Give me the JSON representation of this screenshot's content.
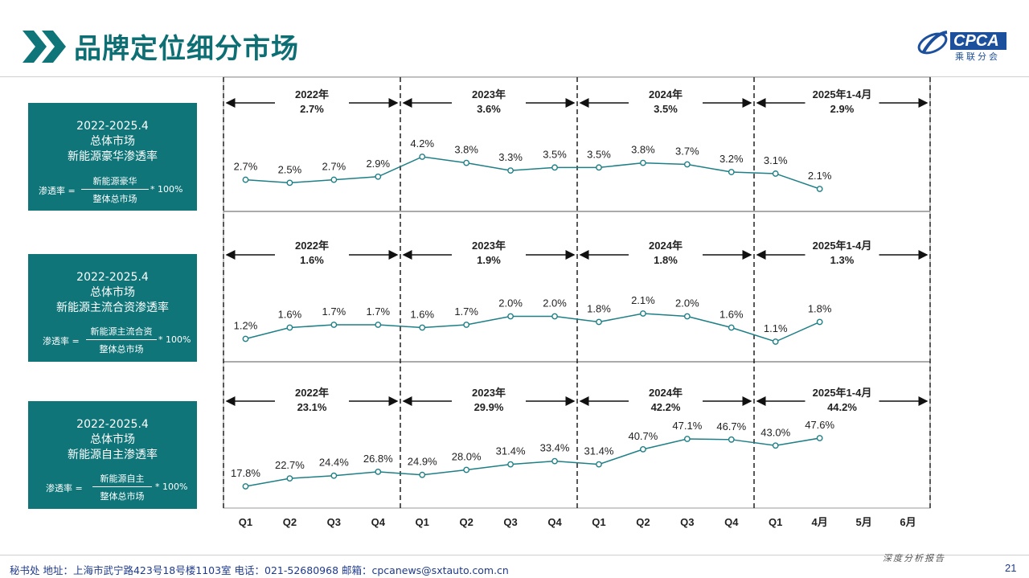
{
  "page": {
    "title": "品牌定位细分市场",
    "logo_text": "CPCA",
    "logo_sub": "乘联分会",
    "report_tag": "深度分析报告",
    "page_number": "21",
    "footer": "秘书处   地址：上海市武宁路423号18号楼1103室  电话：021-52680968   邮箱：cpcanews@sxtauto.com.cn"
  },
  "colors": {
    "brand_teal": "#0f7579",
    "line": "#1e7f86",
    "title": "#0d6f73",
    "logo_blue": "#1c4f9c"
  },
  "panels": [
    {
      "box_lines": [
        "2022-2025.4",
        "总体市场",
        "新能源豪华渗透率"
      ],
      "formula": {
        "label": "渗透率 =",
        "numerator": "新能源豪华",
        "denominator": "整体总市场",
        "multiplier": "* 100%"
      }
    },
    {
      "box_lines": [
        "2022-2025.4",
        "总体市场",
        "新能源主流合资渗透率"
      ],
      "formula": {
        "label": "渗透率 =",
        "numerator": "新能源主流合资",
        "denominator": "整体总市场",
        "multiplier": "* 100%"
      }
    },
    {
      "box_lines": [
        "2022-2025.4",
        "总体市场",
        "新能源自主渗透率"
      ],
      "formula": {
        "label": "渗透率 =",
        "numerator": "新能源自主",
        "denominator": "整体总市场",
        "multiplier": "* 100%"
      }
    }
  ],
  "chart_data": [
    {
      "type": "line",
      "categories": [
        "Q1",
        "Q2",
        "Q3",
        "Q4",
        "Q1",
        "Q2",
        "Q3",
        "Q4",
        "Q1",
        "Q2",
        "Q3",
        "Q4",
        "Q1",
        "4月",
        "5月",
        "6月"
      ],
      "values": [
        2.7,
        2.5,
        2.7,
        2.9,
        4.2,
        3.8,
        3.3,
        3.5,
        3.5,
        3.8,
        3.7,
        3.2,
        3.1,
        2.1
      ],
      "labels": [
        "2.7%",
        "2.5%",
        "2.7%",
        "2.9%",
        "4.2%",
        "3.8%",
        "3.3%",
        "3.5%",
        "3.5%",
        "3.8%",
        "3.7%",
        "3.2%",
        "3.1%",
        "2.1%"
      ],
      "periods": [
        {
          "year": "2022年",
          "avg": "2.7%"
        },
        {
          "year": "2023年",
          "avg": "3.6%"
        },
        {
          "year": "2024年",
          "avg": "3.5%"
        },
        {
          "year": "2025年1-4月",
          "avg": "2.9%"
        }
      ]
    },
    {
      "type": "line",
      "categories": [
        "Q1",
        "Q2",
        "Q3",
        "Q4",
        "Q1",
        "Q2",
        "Q3",
        "Q4",
        "Q1",
        "Q2",
        "Q3",
        "Q4",
        "Q1",
        "4月",
        "5月",
        "6月"
      ],
      "values": [
        1.2,
        1.6,
        1.7,
        1.7,
        1.6,
        1.7,
        2.0,
        2.0,
        1.8,
        2.1,
        2.0,
        1.6,
        1.1,
        1.8
      ],
      "labels": [
        "1.2%",
        "1.6%",
        "1.7%",
        "1.7%",
        "1.6%",
        "1.7%",
        "2.0%",
        "2.0%",
        "1.8%",
        "2.1%",
        "2.0%",
        "1.6%",
        "1.1%",
        "1.8%"
      ],
      "periods": [
        {
          "year": "2022年",
          "avg": "1.6%"
        },
        {
          "year": "2023年",
          "avg": "1.9%"
        },
        {
          "year": "2024年",
          "avg": "1.8%"
        },
        {
          "year": "2025年1-4月",
          "avg": "1.3%"
        }
      ]
    },
    {
      "type": "line",
      "categories": [
        "Q1",
        "Q2",
        "Q3",
        "Q4",
        "Q1",
        "Q2",
        "Q3",
        "Q4",
        "Q1",
        "Q2",
        "Q3",
        "Q4",
        "Q1",
        "4月",
        "5月",
        "6月"
      ],
      "values": [
        17.8,
        22.7,
        24.4,
        26.8,
        24.9,
        28.0,
        31.4,
        33.4,
        31.4,
        40.7,
        47.1,
        46.7,
        43.0,
        47.6
      ],
      "labels": [
        "17.8%",
        "22.7%",
        "24.4%",
        "26.8%",
        "24.9%",
        "28.0%",
        "31.4%",
        "33.4%",
        "31.4%",
        "40.7%",
        "47.1%",
        "46.7%",
        "43.0%",
        "47.6%"
      ],
      "periods": [
        {
          "year": "2022年",
          "avg": "23.1%"
        },
        {
          "year": "2023年",
          "avg": "29.9%"
        },
        {
          "year": "2024年",
          "avg": "42.2%"
        },
        {
          "year": "2025年1-4月",
          "avg": "44.2%"
        }
      ]
    }
  ],
  "x_axis_labels": [
    "Q1",
    "Q2",
    "Q3",
    "Q4",
    "Q1",
    "Q2",
    "Q3",
    "Q4",
    "Q1",
    "Q2",
    "Q3",
    "Q4",
    "Q1",
    "4月",
    "5月",
    "6月"
  ]
}
